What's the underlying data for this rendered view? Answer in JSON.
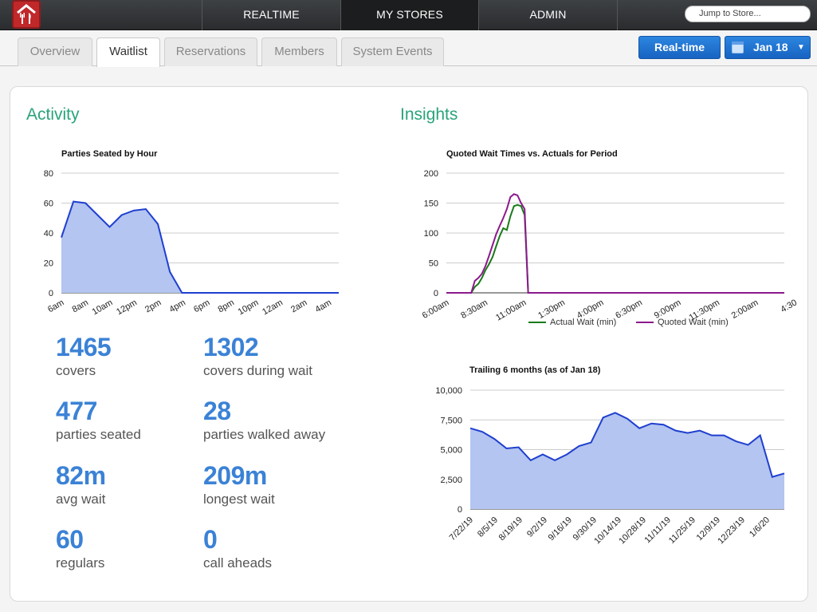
{
  "nav": {
    "items": [
      "REALTIME",
      "MY STORES",
      "ADMIN"
    ],
    "active": "MY STORES",
    "jump_placeholder": "Jump to Store..."
  },
  "tabs": {
    "items": [
      "Overview",
      "Waitlist",
      "Reservations",
      "Members",
      "System Events"
    ],
    "active": "Waitlist"
  },
  "toolbar": {
    "realtime_label": "Real-time",
    "date_label": "Jan 18",
    "caret": "▼"
  },
  "colors": {
    "accent_green": "#2aa37c",
    "stat_blue": "#3b82d6",
    "chart_blue": "#1f3fcf",
    "chart_fill": "#b3c5f0",
    "actual_green": "#1a7a1a",
    "quoted_purple": "#8c1a8c"
  },
  "activity": {
    "title": "Activity",
    "stats": [
      {
        "value": "1465",
        "label": "covers"
      },
      {
        "value": "1302",
        "label": "covers during wait"
      },
      {
        "value": "477",
        "label": "parties seated"
      },
      {
        "value": "28",
        "label": "parties walked away"
      },
      {
        "value": "82m",
        "label": "avg wait"
      },
      {
        "value": "209m",
        "label": "longest wait"
      },
      {
        "value": "60",
        "label": "regulars"
      },
      {
        "value": "0",
        "label": "call aheads"
      }
    ]
  },
  "insights": {
    "title": "Insights"
  },
  "chart_data": [
    {
      "type": "area",
      "title": "Parties Seated by Hour",
      "ylim": [
        0,
        80
      ],
      "yticks": [
        "0",
        "20",
        "40",
        "60",
        "80"
      ],
      "xticks": [
        "6am",
        "8am",
        "10am",
        "12pm",
        "2pm",
        "4pm",
        "6pm",
        "8pm",
        "10pm",
        "12am",
        "2am",
        "4am"
      ],
      "x": [
        0,
        1,
        2,
        3,
        4,
        5,
        6,
        7,
        8,
        9,
        10,
        11,
        12,
        13,
        14,
        15,
        16,
        17,
        18,
        19,
        20,
        21,
        22,
        23
      ],
      "values": [
        37,
        61,
        60,
        52,
        44,
        52,
        55,
        56,
        46,
        14,
        0,
        0,
        0,
        0,
        0,
        0,
        0,
        0,
        0,
        0,
        0,
        0,
        0,
        0
      ],
      "grid": true
    },
    {
      "type": "line",
      "title": "Quoted Wait Times vs. Actuals for Period",
      "ylim": [
        0,
        200
      ],
      "yticks": [
        "0",
        "50",
        "100",
        "150",
        "200"
      ],
      "xticks": [
        "6:00am",
        "8:30am",
        "11:00am",
        "1:30pm",
        "4:00pm",
        "6:30pm",
        "9:00pm",
        "11:30pm",
        "2:00am",
        "4:30"
      ],
      "x": [
        0,
        1,
        2,
        3,
        4,
        5,
        6,
        7,
        8,
        9,
        10,
        11,
        12,
        13,
        14,
        15,
        16,
        17,
        18,
        19,
        20,
        21,
        22,
        23,
        24,
        25,
        26,
        27,
        28,
        29,
        30,
        31,
        32,
        33,
        34,
        35,
        36,
        37,
        38,
        39,
        40,
        41,
        42,
        43,
        44,
        45,
        46,
        47,
        48,
        49,
        50,
        51,
        52,
        53,
        54,
        55,
        56,
        57,
        58,
        59,
        60,
        61,
        62,
        63,
        64,
        65,
        66,
        67,
        68,
        69,
        70,
        71,
        72,
        73,
        74,
        75,
        76,
        77,
        78,
        79,
        80,
        81,
        82,
        83,
        84,
        85,
        86,
        87,
        88,
        89,
        90,
        91,
        92,
        93,
        94,
        95
      ],
      "series": [
        {
          "name": "Actual Wait (min)",
          "values": [
            0,
            0,
            0,
            0,
            0,
            0,
            0,
            0,
            10,
            15,
            25,
            38,
            48,
            60,
            78,
            95,
            108,
            105,
            128,
            145,
            147,
            145,
            130,
            0,
            0,
            0,
            0,
            0,
            0,
            0,
            0,
            0,
            0,
            0,
            0,
            0,
            0,
            0,
            0,
            0,
            0,
            0,
            0,
            0,
            0,
            0,
            0,
            0,
            0,
            0,
            0,
            0,
            0,
            0,
            0,
            0,
            0,
            0,
            0,
            0,
            0,
            0,
            0,
            0,
            0,
            0,
            0,
            0,
            0,
            0,
            0,
            0,
            0,
            0,
            0,
            0,
            0,
            0,
            0,
            0,
            0,
            0,
            0,
            0,
            0,
            0,
            0,
            0,
            0,
            0,
            0,
            0,
            0,
            0,
            0,
            0
          ]
        },
        {
          "name": "Quoted Wait (min)",
          "values": [
            0,
            0,
            0,
            0,
            0,
            0,
            0,
            0,
            20,
            25,
            32,
            45,
            62,
            80,
            98,
            112,
            125,
            140,
            160,
            165,
            163,
            150,
            140,
            0,
            0,
            0,
            0,
            0,
            0,
            0,
            0,
            0,
            0,
            0,
            0,
            0,
            0,
            0,
            0,
            0,
            0,
            0,
            0,
            0,
            0,
            0,
            0,
            0,
            0,
            0,
            0,
            0,
            0,
            0,
            0,
            0,
            0,
            0,
            0,
            0,
            0,
            0,
            0,
            0,
            0,
            0,
            0,
            0,
            0,
            0,
            0,
            0,
            0,
            0,
            0,
            0,
            0,
            0,
            0,
            0,
            0,
            0,
            0,
            0,
            0,
            0,
            0,
            0,
            0,
            0,
            0,
            0,
            0,
            0,
            0,
            0
          ]
        }
      ],
      "legend": "bottom",
      "grid": true
    },
    {
      "type": "area",
      "title": "Trailing 6 months (as of Jan 18)",
      "ylim": [
        0,
        10000
      ],
      "yticks": [
        "0",
        "2,500",
        "5,000",
        "7,500",
        "10,000"
      ],
      "xticks": [
        "7/22/19",
        "8/5/19",
        "8/19/19",
        "9/2/19",
        "9/16/19",
        "9/30/19",
        "10/14/19",
        "10/28/19",
        "11/11/19",
        "11/25/19",
        "12/9/19",
        "12/23/19",
        "1/6/20"
      ],
      "x": [
        0,
        1,
        2,
        3,
        4,
        5,
        6,
        7,
        8,
        9,
        10,
        11,
        12,
        13,
        14,
        15,
        16,
        17,
        18,
        19,
        20,
        21,
        22,
        23,
        24,
        25,
        26
      ],
      "values": [
        6800,
        6500,
        5900,
        5100,
        5200,
        4100,
        4600,
        4100,
        4600,
        5300,
        5600,
        7700,
        8100,
        7600,
        6800,
        7200,
        7100,
        6600,
        6400,
        6600,
        6200,
        6200,
        5700,
        5400,
        6200,
        2700,
        3000
      ],
      "grid": true
    }
  ]
}
